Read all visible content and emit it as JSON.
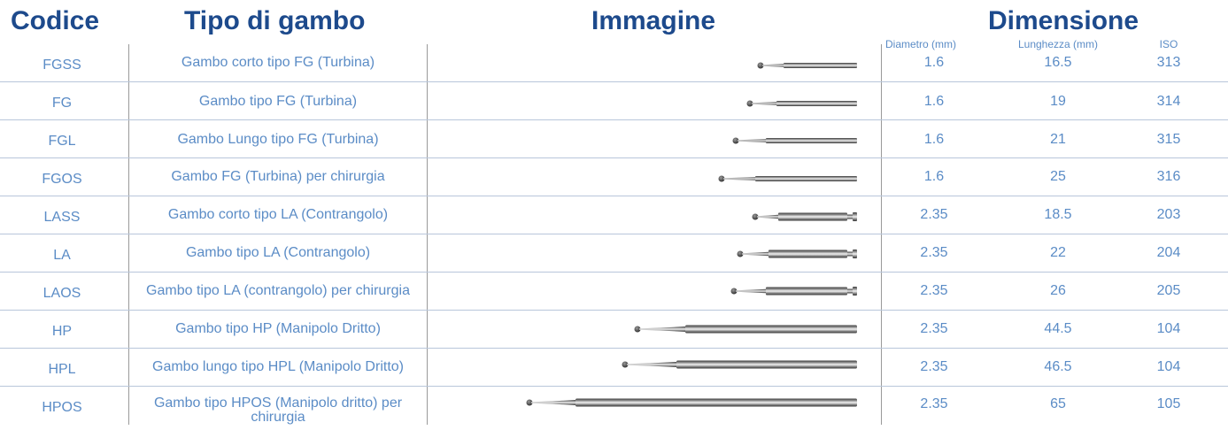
{
  "headers": {
    "codice": "Codice",
    "tipo": "Tipo di gambo",
    "immagine": "Immagine",
    "dimensione": "Dimensione"
  },
  "subheaders": {
    "diametro": "Diametro (mm)",
    "lunghezza": "Lunghezza (mm)",
    "iso": "ISO"
  },
  "rows": [
    {
      "codice": "FGSS",
      "tipo": "Gambo corto tipo FG (Turbina)",
      "diametro": "1.6",
      "lunghezza": "16.5",
      "iso": "313",
      "image": "bur-fgss-image"
    },
    {
      "codice": "FG",
      "tipo": "Gambo tipo FG (Turbina)",
      "diametro": "1.6",
      "lunghezza": "19",
      "iso": "314",
      "image": "bur-fg-image"
    },
    {
      "codice": "FGL",
      "tipo": "Gambo Lungo tipo FG (Turbina)",
      "diametro": "1.6",
      "lunghezza": "21",
      "iso": "315",
      "image": "bur-fgl-image"
    },
    {
      "codice": "FGOS",
      "tipo": "Gambo FG (Turbina) per chirurgia",
      "diametro": "1.6",
      "lunghezza": "25",
      "iso": "316",
      "image": "bur-fgos-image"
    },
    {
      "codice": "LASS",
      "tipo": "Gambo corto tipo LA (Contrangolo)",
      "diametro": "2.35",
      "lunghezza": "18.5",
      "iso": "203",
      "image": "bur-lass-image"
    },
    {
      "codice": "LA",
      "tipo": "Gambo tipo LA (Contrangolo)",
      "diametro": "2.35",
      "lunghezza": "22",
      "iso": "204",
      "image": "bur-la-image"
    },
    {
      "codice": "LAOS",
      "tipo": "Gambo tipo LA (contrangolo) per chirurgia",
      "diametro": "2.35",
      "lunghezza": "26",
      "iso": "205",
      "image": "bur-laos-image"
    },
    {
      "codice": "HP",
      "tipo": "Gambo tipo HP (Manipolo Dritto)",
      "diametro": "2.35",
      "lunghezza": "44.5",
      "iso": "104",
      "image": "bur-hp-image"
    },
    {
      "codice": "HPL",
      "tipo": "Gambo lungo tipo HPL (Manipolo Dritto)",
      "diametro": "2.35",
      "lunghezza": "46.5",
      "iso": "104",
      "image": "bur-hpl-image"
    },
    {
      "codice": "HPOS",
      "tipo": "Gambo tipo HPOS (Manipolo dritto) per chirurgia",
      "diametro": "2.35",
      "lunghezza": "65",
      "iso": "105",
      "image": "bur-hpos-image"
    }
  ]
}
